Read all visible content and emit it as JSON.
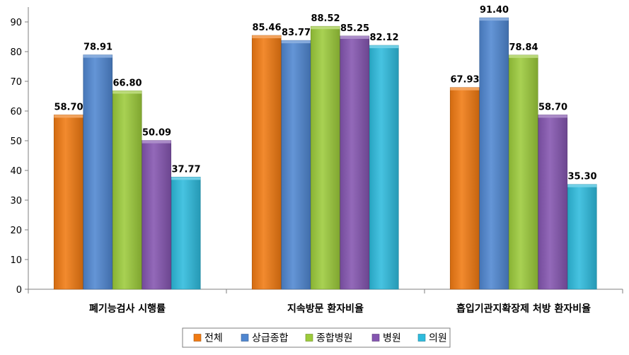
{
  "chart_data": {
    "type": "bar",
    "categories": [
      "폐기능검사 시행률",
      "지속방문 환자비율",
      "흡입기관지확장제 처방 환자비율"
    ],
    "series": [
      {
        "name": "전체",
        "values": [
          58.7,
          85.46,
          67.93
        ],
        "labels": [
          "58.70",
          "85.46",
          "67.93"
        ],
        "color": "#F07A12"
      },
      {
        "name": "상급종합",
        "values": [
          78.91,
          83.77,
          91.4
        ],
        "labels": [
          "78.91",
          "83.77",
          "91.40"
        ],
        "color": "#4F86D0"
      },
      {
        "name": "종합병원",
        "values": [
          66.8,
          88.52,
          78.84
        ],
        "labels": [
          "66.80",
          "88.52",
          "78.84"
        ],
        "color": "#9CCB3B"
      },
      {
        "name": "병원",
        "values": [
          50.09,
          85.25,
          58.7
        ],
        "labels": [
          "50.09",
          "85.25",
          "58.70"
        ],
        "color": "#8455B0"
      },
      {
        "name": "의원",
        "values": [
          37.77,
          82.12,
          35.3
        ],
        "labels": [
          "37.77",
          "82.12",
          "35.30"
        ],
        "color": "#2EBBDD"
      }
    ],
    "ylim": [
      0,
      90
    ],
    "yticks": [
      "0",
      "10",
      "20",
      "30",
      "40",
      "50",
      "60",
      "70",
      "80",
      "90"
    ],
    "legend_position": "bottom",
    "grid": false
  }
}
